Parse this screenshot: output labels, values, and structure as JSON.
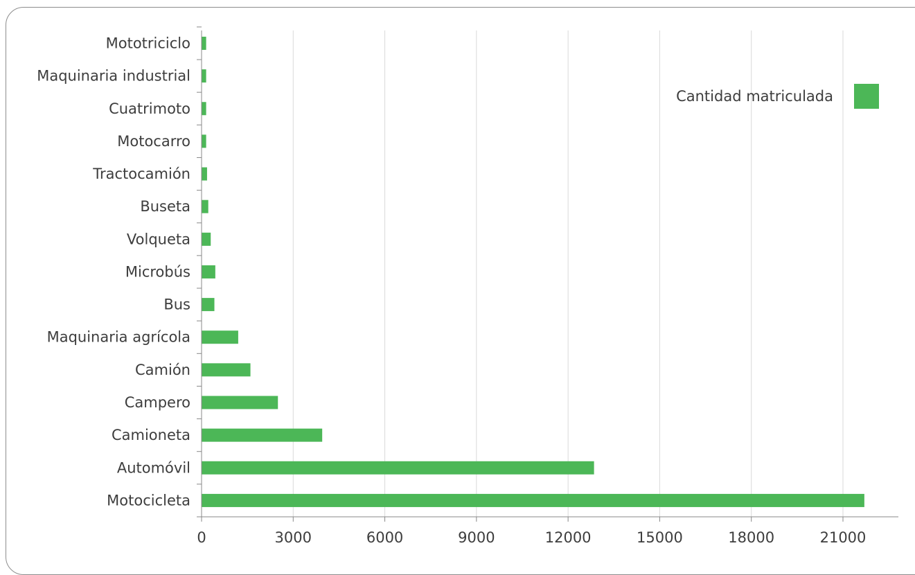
{
  "chart_data": {
    "type": "bar",
    "orientation": "horizontal",
    "categories": [
      "Motocicleta",
      "Automóvil",
      "Camioneta",
      "Campero",
      "Camión",
      "Maquinaria agrícola",
      "Bus",
      "Microbús",
      "Volqueta",
      "Buseta",
      "Tractocamión",
      "Motocarro",
      "Cuatrimoto",
      "Maquinaria industrial",
      "Mototriciclo"
    ],
    "series": [
      {
        "name": "Cantidad matriculada",
        "color": "#4cb757",
        "values": [
          21700,
          12850,
          3950,
          2500,
          1600,
          1200,
          420,
          450,
          300,
          220,
          180,
          150,
          150,
          150,
          150
        ]
      }
    ],
    "xticks": [
      0,
      3000,
      6000,
      9000,
      12000,
      15000,
      18000,
      21000
    ],
    "xlim": [
      0,
      22900
    ],
    "grid": true,
    "legend_position": "top-right",
    "title": "",
    "xlabel": "",
    "ylabel": ""
  }
}
